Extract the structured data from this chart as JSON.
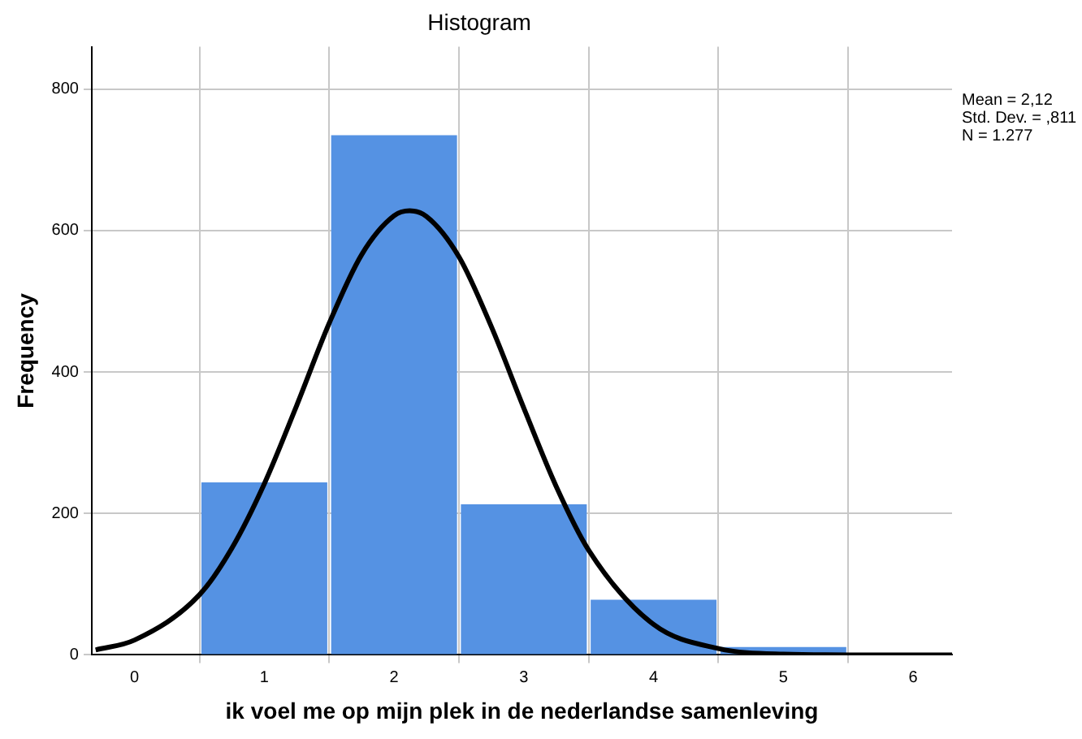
{
  "chart_data": {
    "type": "histogram",
    "title": "Histogram",
    "xlabel": "ik voel me op mijn plek in de nederlandse samenleving",
    "ylabel": "Frequency",
    "bins": [
      0.5,
      1.5,
      2.5,
      3.5,
      4.5,
      5.5
    ],
    "values": [
      244,
      735,
      213,
      78,
      11
    ],
    "color": "#5592e3",
    "series": [
      {
        "type": "line",
        "color": "#000000",
        "x": [
          -0.3,
          0,
          0.5,
          0.75,
          1,
          1.25,
          1.5,
          1.75,
          2,
          2.12,
          2.25,
          2.5,
          2.75,
          3,
          3.25,
          3.5,
          4,
          4.5,
          5,
          5.5,
          6,
          6.3
        ],
        "values": [
          7,
          21,
          85,
          151,
          242,
          353,
          469,
          566,
          621,
          628,
          620,
          563,
          464,
          349,
          238,
          148,
          43,
          9,
          1,
          0,
          0,
          0
        ]
      }
    ],
    "xlim": [
      -0.33,
      6.3
    ],
    "xticks": [
      0,
      1,
      2,
      3,
      4,
      5,
      6
    ],
    "ylim": [
      0,
      860
    ],
    "yticks": [
      0,
      200,
      400,
      600,
      800
    ],
    "grid": true,
    "marker": "none",
    "annotations": [
      "Mean = 2,12",
      "Std. Dev. = ,811",
      "N = 1.277"
    ]
  }
}
